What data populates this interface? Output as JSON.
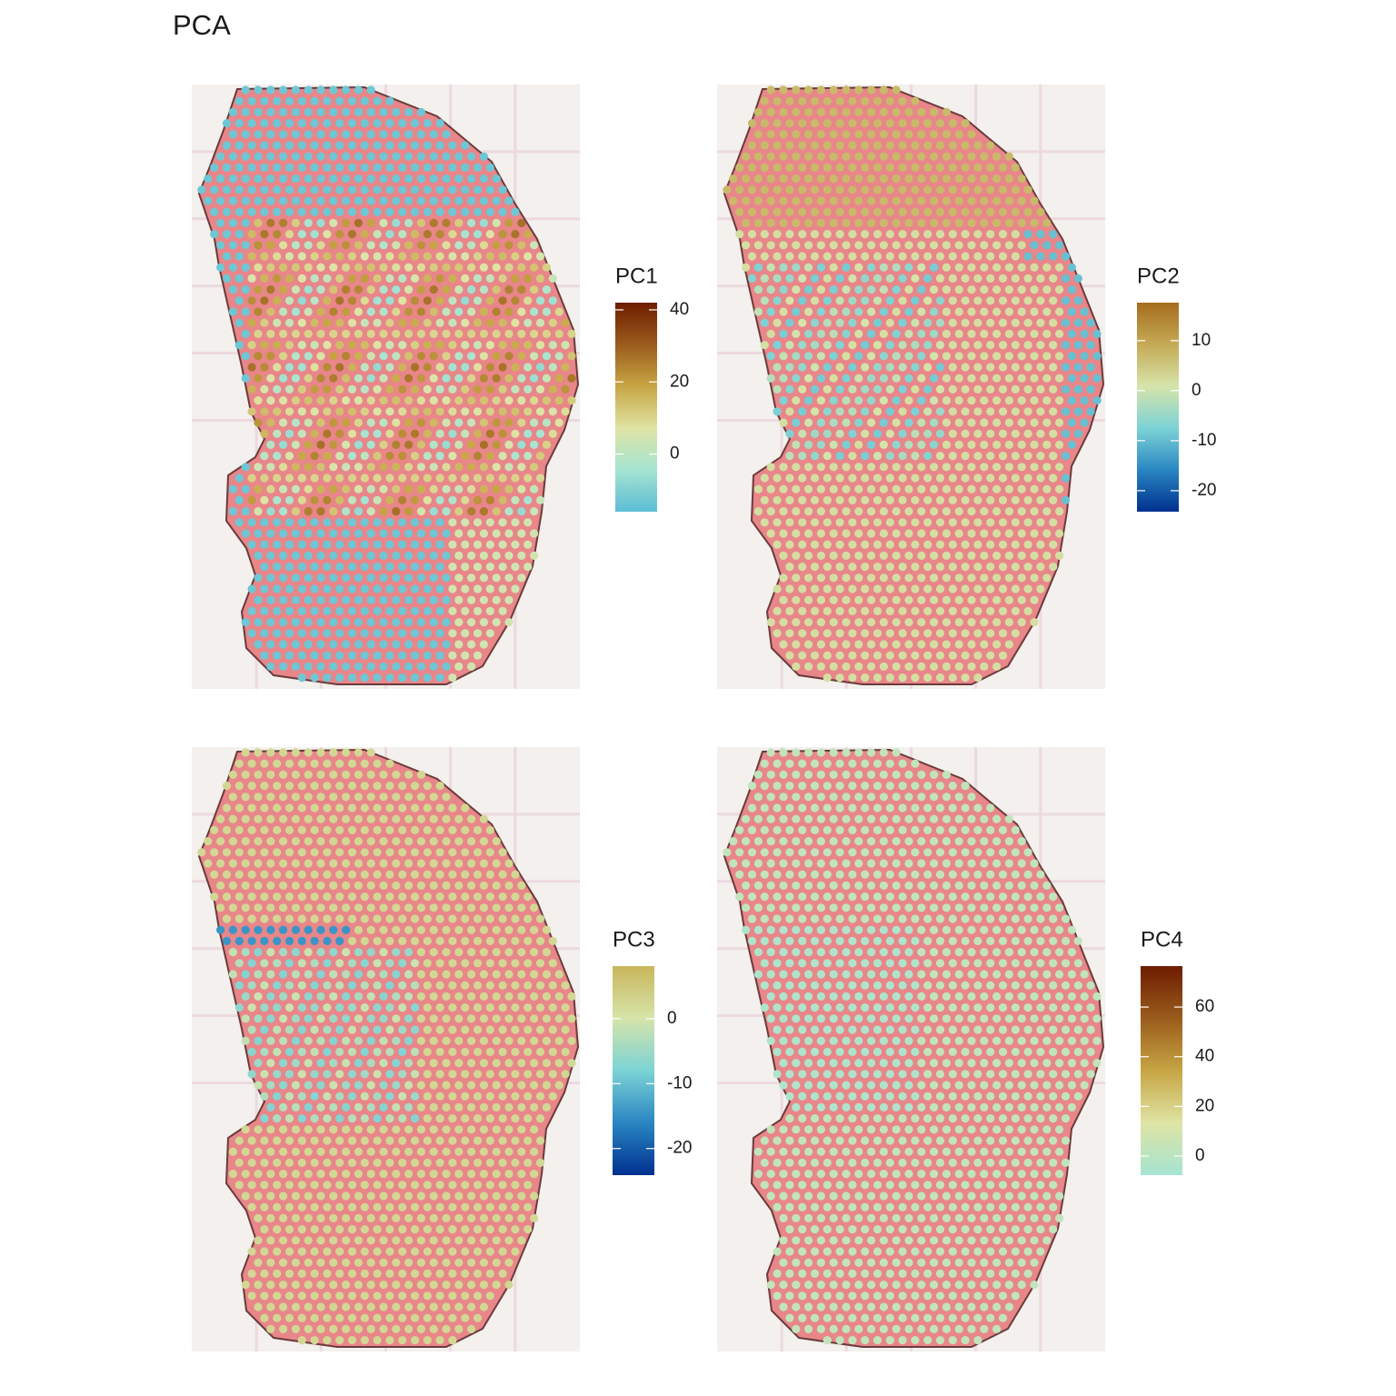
{
  "title": "PCA",
  "chart_data": [
    {
      "type": "spatial",
      "legend_title": "PC1",
      "clim": [
        -16,
        42
      ],
      "ticks": [
        0,
        20,
        40
      ],
      "colors": [
        "#5bbdd4",
        "#a6e4d2",
        "#dfe4a4",
        "#c7a544",
        "#9a5c1c",
        "#6e1c00"
      ]
    },
    {
      "type": "spatial",
      "legend_title": "PC2",
      "clim": [
        -24.2,
        17.6
      ],
      "ticks": [
        -20,
        -10,
        0,
        10
      ],
      "colors": [
        "#00308f",
        "#2a86c2",
        "#7cd3d6",
        "#d6e4aa",
        "#c5aa55",
        "#a66d1e"
      ]
    },
    {
      "type": "spatial",
      "legend_title": "PC3",
      "clim": [
        -24.1,
        8.1
      ],
      "ticks": [
        -20,
        -10,
        0
      ],
      "colors": [
        "#00308f",
        "#2a86c2",
        "#7cd3d6",
        "#d6e4aa",
        "#c9b65c"
      ]
    },
    {
      "type": "spatial",
      "legend_title": "PC4",
      "clim": [
        -7.7,
        76.5
      ],
      "ticks": [
        0,
        20,
        40,
        60
      ],
      "colors": [
        "#a6e4d2",
        "#dfe4a4",
        "#c7a544",
        "#9a5c1c",
        "#6e1c00"
      ]
    }
  ]
}
